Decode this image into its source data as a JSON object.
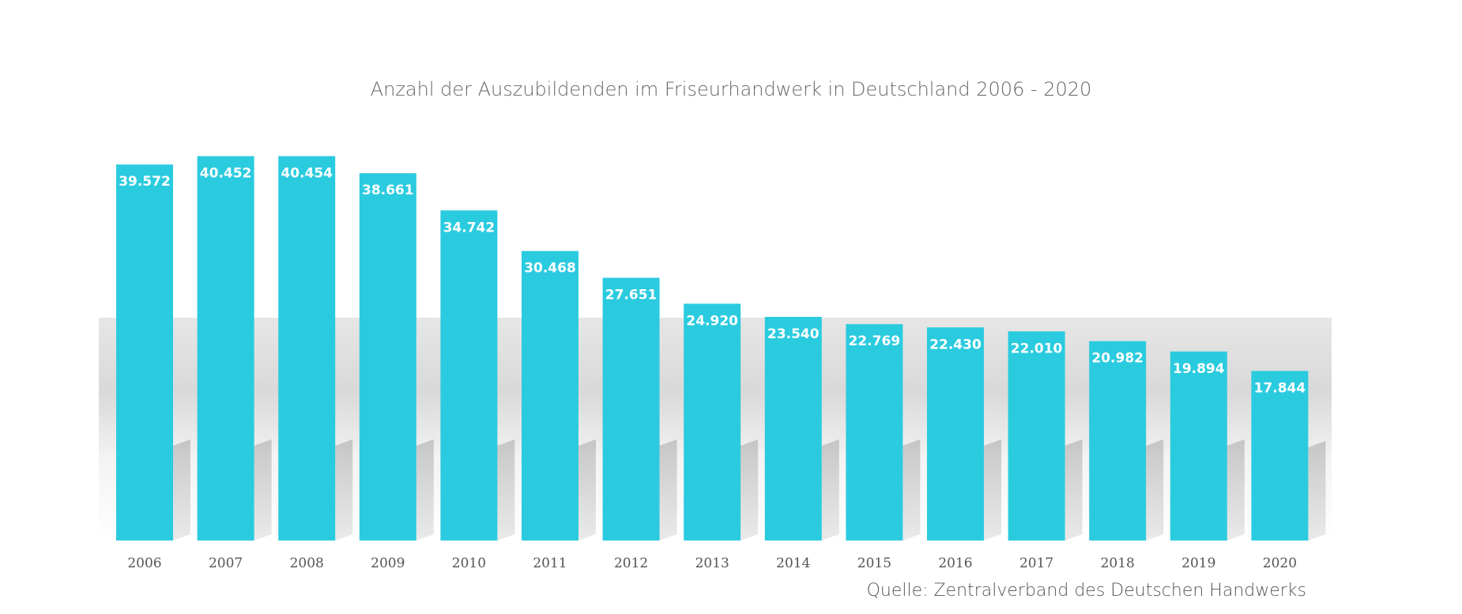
{
  "chart_data": {
    "type": "bar",
    "title": "Anzahl der Auszubildenden im Friseurhandwerk in Deutschland 2006 - 2020",
    "categories": [
      "2006",
      "2007",
      "2008",
      "2009",
      "2010",
      "2011",
      "2012",
      "2013",
      "2014",
      "2015",
      "2016",
      "2017",
      "2018",
      "2019",
      "2020"
    ],
    "values": [
      39572,
      40452,
      40454,
      38661,
      34742,
      30468,
      27651,
      24920,
      23540,
      22769,
      22430,
      22010,
      20982,
      19894,
      17844
    ],
    "value_labels": [
      "39.572",
      "40.452",
      "40.454",
      "38.661",
      "34.742",
      "30.468",
      "27.651",
      "24.920",
      "23.540",
      "22.769",
      "22.430",
      "22.010",
      "20.982",
      "19.894",
      "17.844"
    ],
    "xlabel": "",
    "ylabel": "",
    "ylim": [
      0,
      42000
    ],
    "grid": false,
    "colors": {
      "bar": "#2bcbdf",
      "label": "#ffffff",
      "text": "#555555"
    }
  },
  "source": "Quelle: Zentralverband des Deutschen Handwerks"
}
